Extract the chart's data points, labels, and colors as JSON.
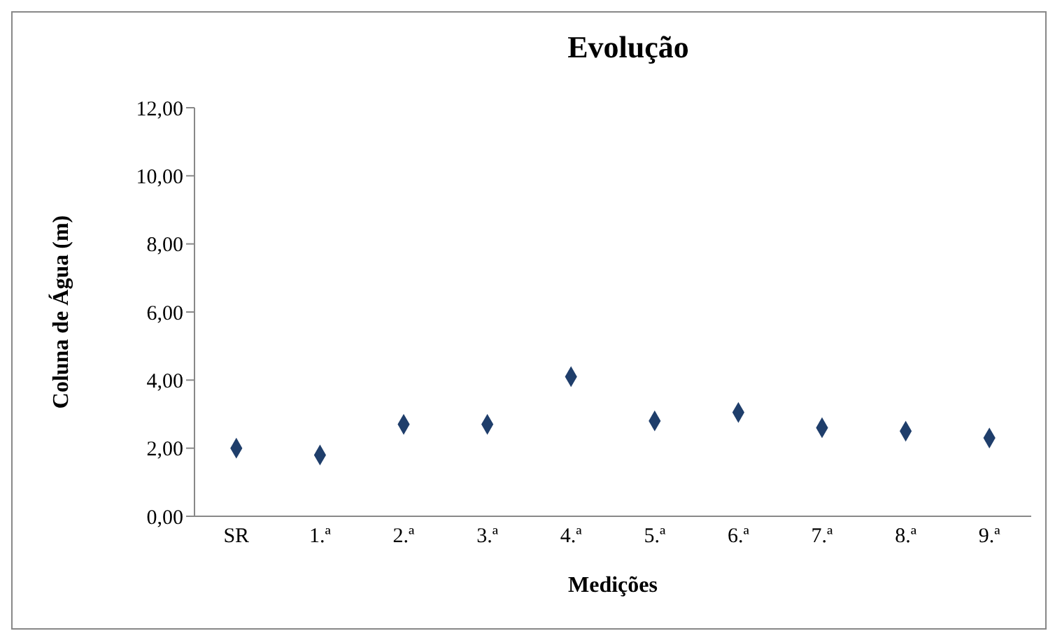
{
  "chart_data": {
    "type": "scatter",
    "title": "Evolução",
    "xlabel": "Medições",
    "ylabel": "Coluna de Água (m)",
    "categories": [
      "SR",
      "1.ª",
      "2.ª",
      "3.ª",
      "4.ª",
      "5.ª",
      "6.ª",
      "7.ª",
      "8.ª",
      "9.ª"
    ],
    "series": [
      {
        "color": "#1f3e6b",
        "values": [
          2.0,
          1.8,
          2.7,
          2.7,
          4.1,
          2.8,
          3.05,
          2.6,
          2.5,
          2.3
        ]
      }
    ],
    "ylim": [
      0,
      12
    ],
    "yticks": [
      {
        "value": 0,
        "label": "0,00"
      },
      {
        "value": 2,
        "label": "2,00"
      },
      {
        "value": 4,
        "label": "4,00"
      },
      {
        "value": 6,
        "label": "6,00"
      },
      {
        "value": 8,
        "label": "8,00"
      },
      {
        "value": 10,
        "label": "10,00"
      },
      {
        "value": 12,
        "label": "12,00"
      }
    ],
    "grid": false,
    "legend": false,
    "marker": "diamond"
  }
}
